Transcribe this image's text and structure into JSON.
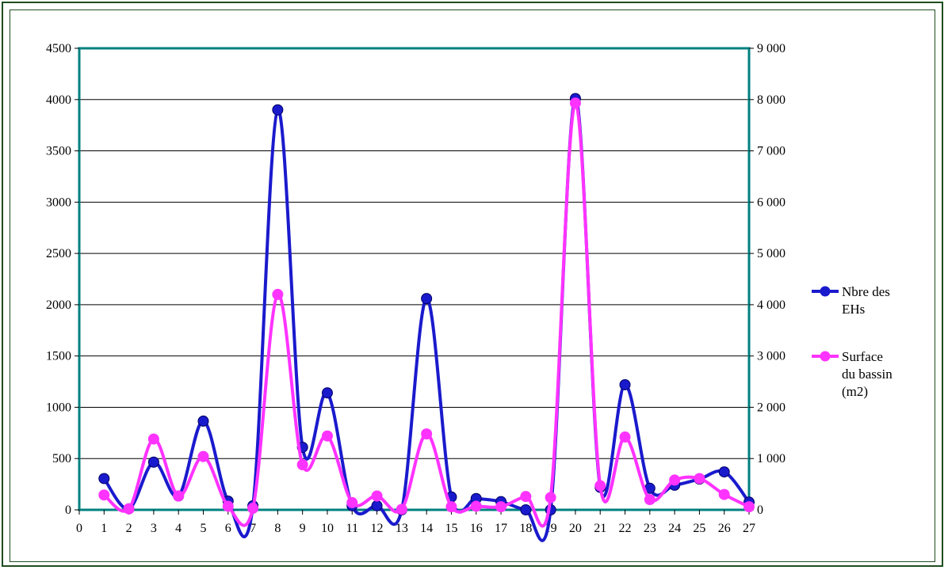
{
  "chart_data": {
    "type": "line",
    "title": "",
    "xlabel": "",
    "ylabel": "",
    "x": [
      1,
      2,
      3,
      4,
      5,
      6,
      7,
      8,
      9,
      10,
      11,
      12,
      13,
      14,
      15,
      16,
      17,
      18,
      19,
      20,
      21,
      22,
      23,
      24,
      25,
      26,
      27
    ],
    "xlim": [
      0,
      27
    ],
    "x_ticks": [
      "0",
      "1",
      "2",
      "3",
      "4",
      "5",
      "6",
      "7",
      "8",
      "9",
      "10",
      "11",
      "12",
      "13",
      "14",
      "15",
      "16",
      "17",
      "18",
      "19",
      "20",
      "21",
      "22",
      "23",
      "24",
      "25",
      "26",
      "27"
    ],
    "ylim_left": [
      0,
      4500
    ],
    "y_ticks_left": [
      "0",
      "500",
      "1000",
      "1500",
      "2000",
      "2500",
      "3000",
      "3500",
      "4000",
      "4500"
    ],
    "ylim_right": [
      0,
      9000
    ],
    "y_ticks_right": [
      "0",
      "1 000",
      "2 000",
      "3 000",
      "4 000",
      "5 000",
      "6 000",
      "7 000",
      "8 000",
      "9 000"
    ],
    "grid": true,
    "legend_position": "right",
    "series": [
      {
        "name": "Nbre des EHs",
        "axis": "left",
        "color": "#1a1acd",
        "values": [
          305,
          10,
          465,
          135,
          865,
          85,
          40,
          3900,
          610,
          1140,
          40,
          40,
          0,
          2060,
          125,
          110,
          80,
          0,
          0,
          4010,
          220,
          1220,
          210,
          240,
          300,
          370,
          75
        ]
      },
      {
        "name": "Surface du bassin (m2)",
        "axis": "right",
        "color": "#ff33ff",
        "values": [
          290,
          20,
          1380,
          270,
          1040,
          70,
          30,
          4200,
          880,
          1440,
          140,
          270,
          10,
          1480,
          60,
          70,
          60,
          260,
          240,
          7930,
          470,
          1420,
          200,
          580,
          610,
          300,
          60
        ]
      }
    ],
    "legend": [
      {
        "lines": [
          "Nbre des",
          "EHs"
        ],
        "color": "#1a1acd"
      },
      {
        "lines": [
          "Surface",
          "du bassin",
          "(m2)"
        ],
        "color": "#ff33ff"
      }
    ]
  },
  "colors": {
    "frame": "#1f4d1f",
    "plot_border": "#008080",
    "grid": "#000000"
  }
}
